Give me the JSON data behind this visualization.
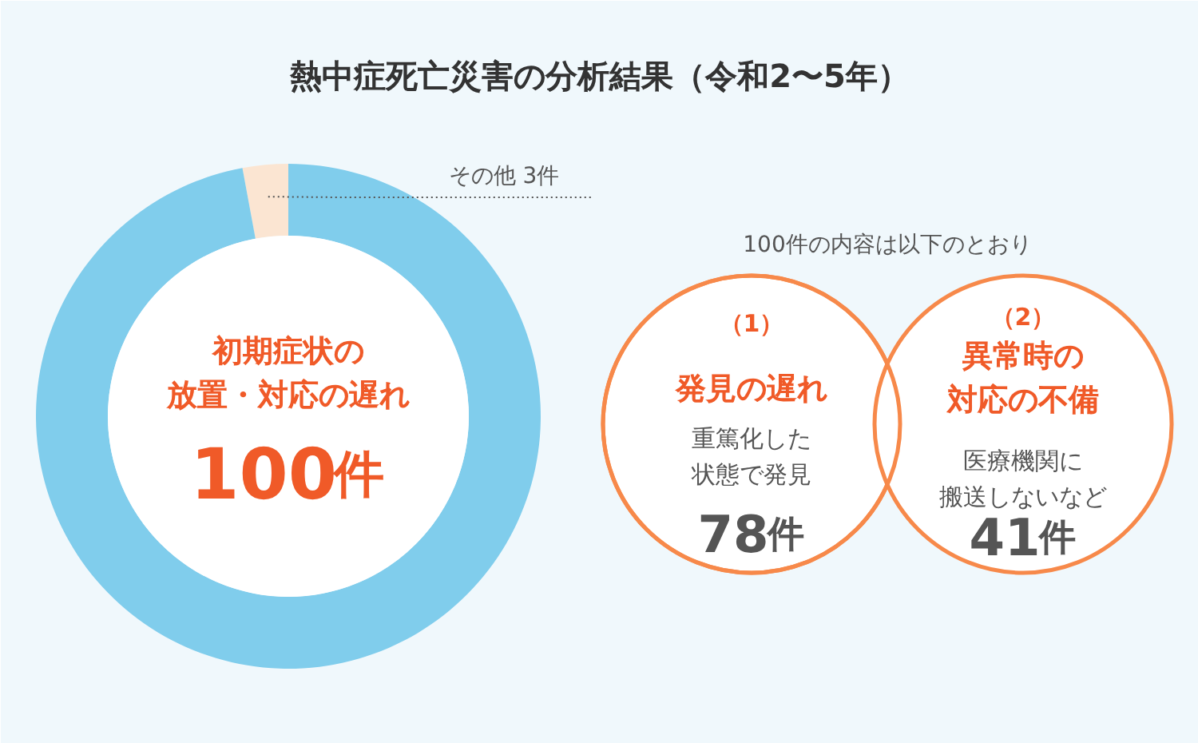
{
  "chart_data": [
    {
      "type": "donut",
      "title": "熱中症死亡災害の分析結果（令和2〜5年）",
      "categories": [
        "初期症状の放置・対応の遅れ",
        "その他"
      ],
      "values": [
        100,
        3
      ],
      "value_labels": [
        "100件",
        "3件"
      ],
      "colors": [
        "#80cdec",
        "#fbe5d2"
      ]
    },
    {
      "type": "other",
      "title": "100件の内容は以下のとおり",
      "categories": [
        "発見の遅れ",
        "異常時の対応の不備"
      ],
      "values": [
        78,
        41
      ],
      "value_labels": [
        "78件",
        "41件"
      ],
      "annotations": [
        "（1）",
        "（2）",
        "重篤化した状態で発見",
        "医療機関に搬送しないなど"
      ],
      "colors": [
        "#f7894a",
        "#f7894a"
      ]
    }
  ]
}
